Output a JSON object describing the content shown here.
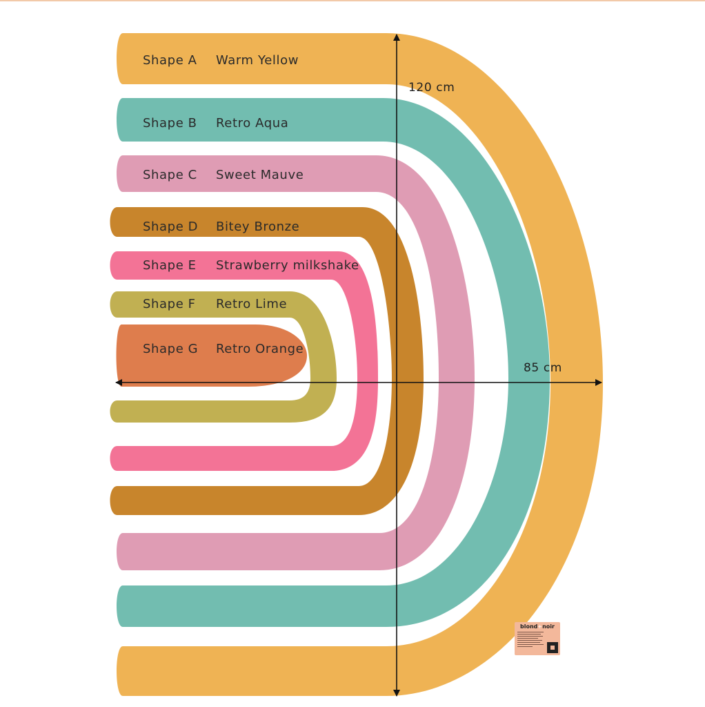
{
  "shapes": [
    {
      "id": "A",
      "label": "Shape A",
      "color_name": "Warm Yellow",
      "color": "#efb354"
    },
    {
      "id": "B",
      "label": "Shape B",
      "color_name": "Retro Aqua",
      "color": "#72bdb0"
    },
    {
      "id": "C",
      "label": "Shape C",
      "color_name": "Sweet Mauve",
      "color": "#df9cb4"
    },
    {
      "id": "D",
      "label": "Shape D",
      "color_name": "Bitey Bronze",
      "color": "#c8852c"
    },
    {
      "id": "E",
      "label": "Shape E",
      "color_name": "Strawberry milkshake",
      "color": "#f37396"
    },
    {
      "id": "F",
      "label": "Shape F",
      "color_name": "Retro Lime",
      "color": "#c1b052"
    },
    {
      "id": "G",
      "label": "Shape G",
      "color_name": "Retro Orange",
      "color": "#de7d4d"
    }
  ],
  "dimensions": {
    "height_label": "120 cm",
    "width_label": "85 cm"
  },
  "brand": {
    "name_left": "blond",
    "name_amp": "+",
    "name_right": "noir",
    "card_color": "#f3b89b"
  },
  "accent": {
    "top_rule": "#f2c9a8",
    "axis": "#111111"
  }
}
